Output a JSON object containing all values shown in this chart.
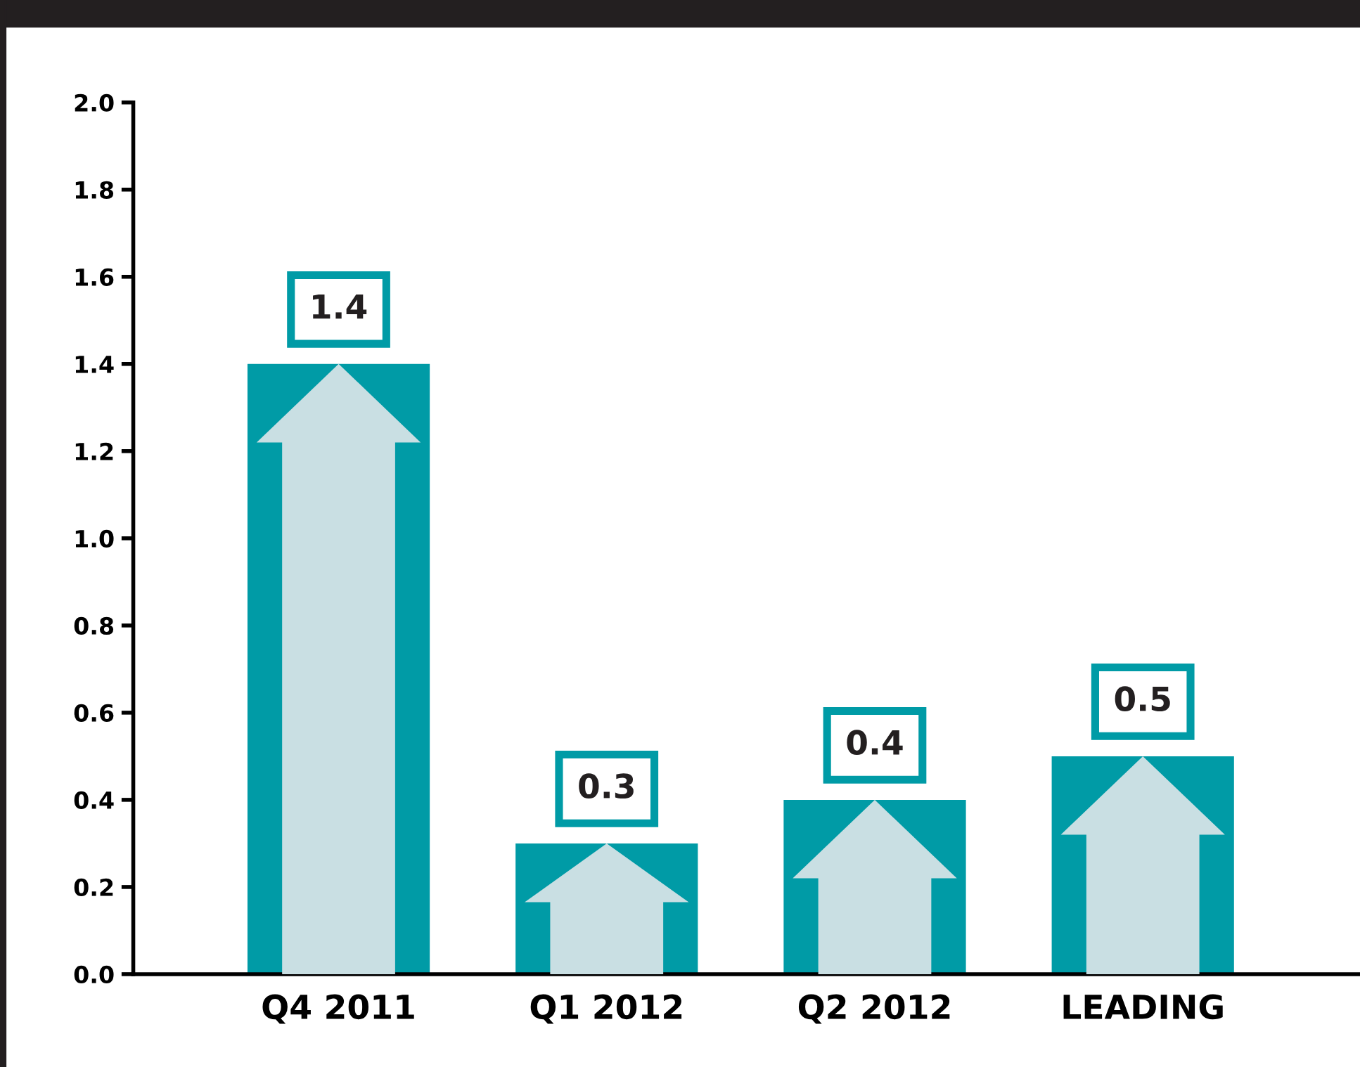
{
  "chart_data": {
    "type": "bar",
    "categories": [
      "Q4 2011",
      "Q1 2012",
      "Q2 2012",
      "LEADING"
    ],
    "values": [
      1.4,
      0.3,
      0.4,
      0.5
    ],
    "color": "#009ba6",
    "ylim": [
      0,
      2.0
    ],
    "yticks": [
      {
        "value": 0,
        "label": "0.0"
      },
      {
        "value": 0.2,
        "label": "0.2"
      },
      {
        "value": 0.4,
        "label": "0.4"
      },
      {
        "value": 0.6,
        "label": "0.6"
      },
      {
        "value": 0.8,
        "label": "0.8"
      },
      {
        "value": 1.0,
        "label": "1.0"
      },
      {
        "value": 1.2,
        "label": "1.2"
      },
      {
        "value": 1.4,
        "label": "1.4"
      },
      {
        "value": 1.6,
        "label": "1.6"
      },
      {
        "value": 1.8,
        "label": "1.8"
      },
      {
        "value": 2.0,
        "label": "2.0"
      }
    ],
    "grid": false,
    "legend": false,
    "data_labels": true
  }
}
